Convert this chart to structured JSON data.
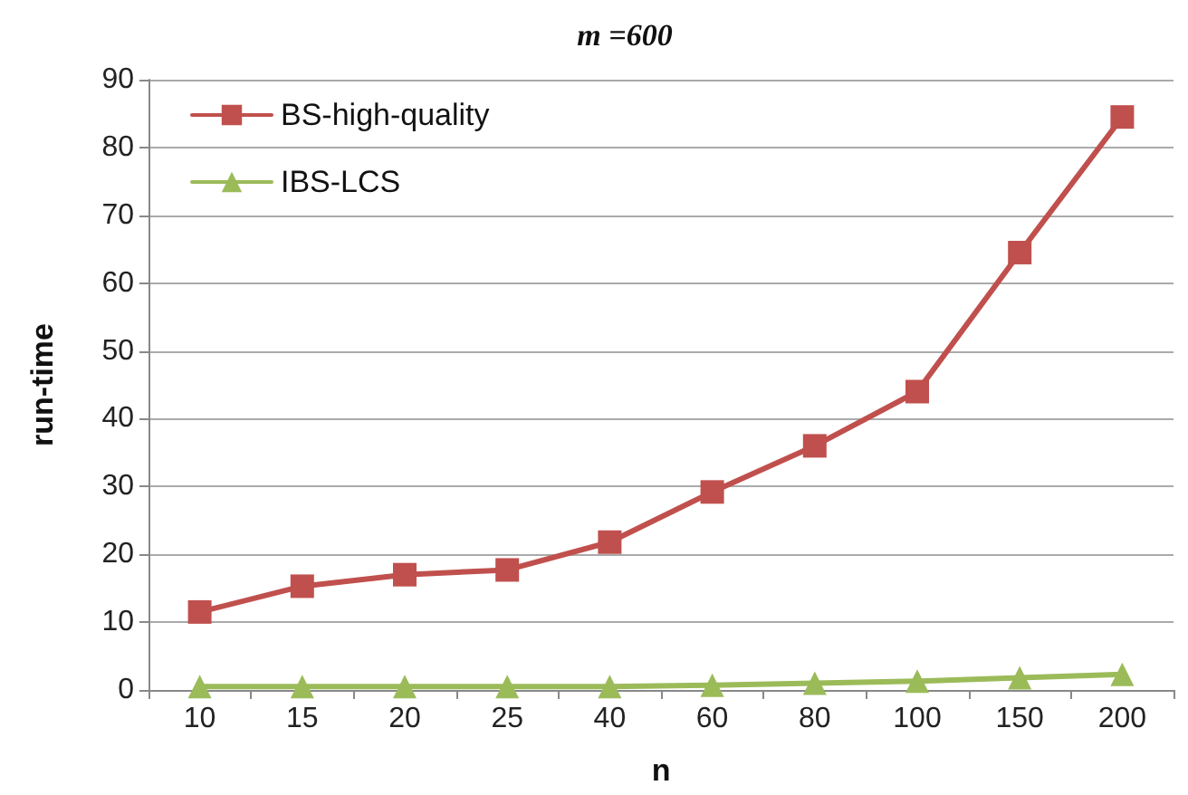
{
  "chart_data": {
    "type": "line",
    "title": "m =600",
    "xlabel": "n",
    "ylabel": "run-time",
    "categories": [
      "10",
      "15",
      "20",
      "25",
      "40",
      "60",
      "80",
      "100",
      "150",
      "200"
    ],
    "series": [
      {
        "name": "BS-high-quality",
        "color": "#c0504d",
        "marker": "square",
        "values": [
          11.5,
          15.3,
          17,
          17.7,
          21.8,
          29.2,
          36,
          44,
          64.5,
          84.5
        ]
      },
      {
        "name": "IBS-LCS",
        "color": "#9bbb59",
        "marker": "triangle",
        "values": [
          0.5,
          0.5,
          0.5,
          0.5,
          0.5,
          0.7,
          1,
          1.3,
          1.8,
          2.3
        ]
      }
    ],
    "ylim": [
      0,
      90
    ],
    "yticks": [
      0,
      10,
      20,
      30,
      40,
      50,
      60,
      70,
      80,
      90
    ],
    "grid": "y",
    "legend": "top left",
    "line_style": "solid"
  }
}
